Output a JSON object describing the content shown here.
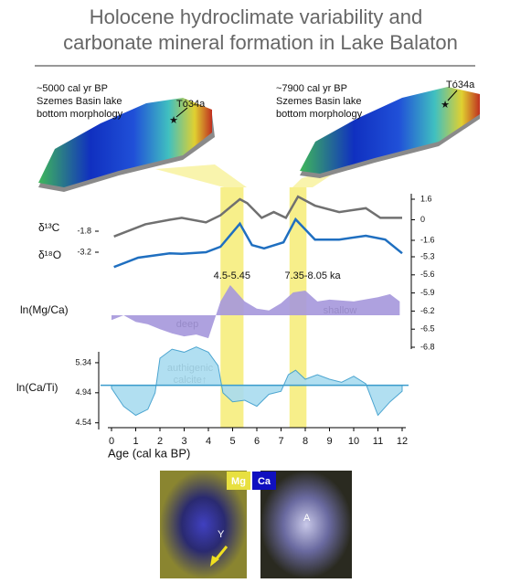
{
  "title": [
    "Holocene hydroclimate variability and",
    "carbonate mineral formation in Lake Balaton"
  ],
  "maps": [
    {
      "lines": [
        "~5000 cal yr BP",
        "Szemes Basin lake",
        "bottom morphology"
      ],
      "site": "Tó34a"
    },
    {
      "lines": [
        "~7900 cal yr BP",
        "Szemes Basin lake",
        "bottom morphology"
      ],
      "site": "Tó34a"
    }
  ],
  "x_axis": {
    "label": "Age (cal ka BP)",
    "xlim": [
      0,
      12
    ],
    "xticks": [
      0,
      1,
      2,
      3,
      4,
      5,
      6,
      7,
      8,
      9,
      10,
      11,
      12
    ]
  },
  "highlights": [
    {
      "label": "4.5-5.45",
      "range": [
        4.5,
        5.45
      ]
    },
    {
      "label": "7.35-8.05 ka",
      "range": [
        7.35,
        8.05
      ]
    }
  ],
  "chart_data": [
    {
      "type": "line",
      "ylabel": "δ¹³C",
      "ylim": [
        -2.0,
        -1.1
      ],
      "yticks": [
        -1.8
      ],
      "y2lim": [
        -1.6,
        1.6
      ],
      "y2ticks": [
        1.6,
        0,
        -1.6
      ],
      "series": [
        {
          "name": "δ¹³C",
          "color": "#707070",
          "axis": "y2",
          "x": [
            0.1,
            1.4,
            2.4,
            2.9,
            3.9,
            4.5,
            5.3,
            5.6,
            6.2,
            6.7,
            7.2,
            7.7,
            8.4,
            9.4,
            10.5,
            11.1,
            12
          ],
          "values": [
            -1.3,
            -0.35,
            0,
            0.15,
            -0.2,
            0.35,
            1.6,
            1.3,
            0.15,
            0.6,
            0.15,
            1.8,
            1.1,
            0.6,
            0.9,
            0.15,
            0.15
          ]
        }
      ]
    },
    {
      "type": "line",
      "ylabel": "δ¹⁸O",
      "ylim": [
        -3.6,
        -2.6
      ],
      "yticks": [
        -3.2
      ],
      "series": [
        {
          "name": "δ¹⁸O",
          "color": "#1f6fc0",
          "x": [
            0.1,
            1.1,
            2.4,
            2.9,
            3.9,
            4.5,
            5.3,
            5.8,
            6.3,
            7.1,
            7.6,
            8.4,
            9.4,
            10.5,
            11.3,
            12
          ],
          "values": [
            -3.47,
            -3.3,
            -3.22,
            -3.23,
            -3.2,
            -3.1,
            -2.68,
            -3.07,
            -3.13,
            -3.02,
            -2.6,
            -2.97,
            -2.97,
            -2.9,
            -2.97,
            -3.22
          ]
        }
      ]
    },
    {
      "type": "area",
      "ylabel": "ln(Mg/Ca)",
      "y2lim": [
        -6.8,
        -5.3
      ],
      "y2ticks": [
        -5.3,
        -5.6,
        -5.9,
        -6.2,
        -6.5,
        -6.8
      ],
      "baseline": -6.27,
      "annotations": [
        "deep",
        "shallow"
      ],
      "series": [
        {
          "name": "ln(Mg/Ca)",
          "color": "#a597dc",
          "axis": "y2",
          "x": [
            0,
            0.5,
            1,
            1.5,
            2,
            2.5,
            3,
            3.5,
            4,
            4.5,
            4.9,
            5.5,
            6,
            6.5,
            7,
            7.5,
            8,
            8.5,
            9,
            10,
            11,
            11.5,
            11.9
          ],
          "values": [
            -6.35,
            -6.27,
            -6.38,
            -6.42,
            -6.5,
            -6.57,
            -6.62,
            -6.59,
            -6.65,
            -6.04,
            -5.77,
            -6.04,
            -6.16,
            -6.19,
            -6.07,
            -5.89,
            -5.86,
            -6.04,
            -6.01,
            -6.04,
            -5.97,
            -5.92,
            -6.04
          ]
        }
      ]
    },
    {
      "type": "area",
      "ylabel": "ln(Ca/Ti)",
      "ylim": [
        4.5,
        5.4
      ],
      "yticks": [
        5.34,
        4.94,
        4.54
      ],
      "baseline": 5.04,
      "annotations": [
        "authigenic",
        "calcite↑"
      ],
      "series": [
        {
          "name": "ln(Ca/Ti)",
          "color": "#a9dcf0",
          "x": [
            0,
            0.5,
            1,
            1.5,
            1.8,
            2,
            2.5,
            3,
            3.5,
            4,
            4.4,
            4.6,
            5,
            5.5,
            6,
            6.5,
            7,
            7.3,
            7.6,
            8,
            8.5,
            9,
            9.5,
            10,
            10.5,
            11,
            11.5,
            12
          ],
          "values": [
            5.0,
            4.76,
            4.64,
            4.72,
            4.94,
            5.4,
            5.52,
            5.48,
            5.55,
            5.48,
            5.3,
            4.94,
            4.82,
            4.84,
            4.76,
            4.92,
            4.96,
            5.18,
            5.24,
            5.12,
            5.18,
            5.12,
            5.08,
            5.16,
            5.06,
            4.64,
            4.82,
            4.96
          ]
        }
      ]
    }
  ],
  "micrographs": {
    "legend": [
      "Mg",
      "Ca"
    ],
    "labels": [
      "Y",
      "A"
    ]
  }
}
